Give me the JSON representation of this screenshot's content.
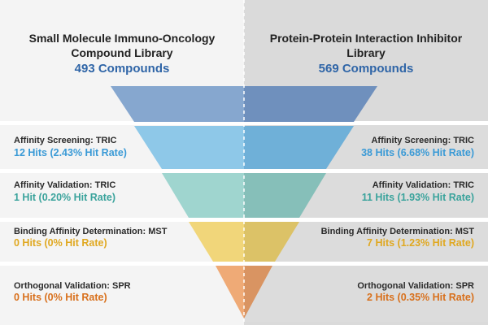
{
  "left_library": {
    "title_line1": "Small Molecule Immuno-Oncology",
    "title_line2": "Compound Library",
    "count": "493 Compounds"
  },
  "right_library": {
    "title_line1": "Protein-Protein Interaction Inhibitor",
    "title_line2": "Library",
    "count": "569 Compounds"
  },
  "stages": [
    {
      "label": "Affinity Screening: TRIC",
      "left_hits": "12 Hits (2.43% Hit Rate)",
      "right_hits": "38 Hits (6.68% Hit Rate)",
      "color": "#3a9ad6",
      "funnel_color_left": "#8ec8e8",
      "funnel_color_right": "#6fb0d8"
    },
    {
      "label": "Affinity Validation: TRIC",
      "left_hits": "1 Hit (0.20% Hit Rate)",
      "right_hits": "11 Hits (1.93% Hit Rate)",
      "color": "#3aa39c",
      "funnel_color_left": "#9fd5cf",
      "funnel_color_right": "#86bfb9"
    },
    {
      "label": "Binding Affinity Determination: MST",
      "left_hits": "0 Hits (0% Hit Rate)",
      "right_hits": "7 Hits (1.23% Hit Rate)",
      "color": "#e0a820",
      "funnel_color_left": "#f1d67a",
      "funnel_color_right": "#dcc267"
    },
    {
      "label": "Orthogonal Validation: SPR",
      "left_hits": "0 Hits (0% Hit Rate)",
      "right_hits": "2 Hits (0.35% Hit Rate)",
      "color": "#d8701c",
      "funnel_color_left": "#efaa76",
      "funnel_color_right": "#d99462"
    }
  ],
  "top_funnel": {
    "color_left": "#86a7cf",
    "color_right": "#6f90bd"
  },
  "colors": {
    "title_blue": "#2f65a7"
  }
}
